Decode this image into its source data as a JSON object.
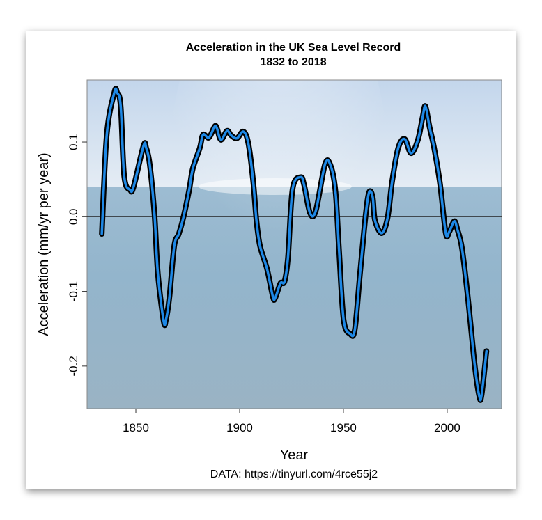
{
  "chart_data": {
    "type": "line",
    "title": "Acceleration in the UK Sea Level Record",
    "subtitle": "1832 to 2018",
    "xlabel": "Year",
    "ylabel": "Acceleration (mm/yr per year)",
    "caption": "DATA: https://tinyurl.com/4rce55j2",
    "xlim": [
      1826.5,
      2026.2
    ],
    "ylim": [
      -0.257,
      0.183
    ],
    "xticks": [
      1850,
      1900,
      1950,
      2000
    ],
    "xtick_labels": [
      "1850",
      "1900",
      "1950",
      "2000"
    ],
    "yticks": [
      -0.2,
      -0.1,
      0.0,
      0.1
    ],
    "ytick_labels": [
      "-0.2",
      "-0.1",
      "0.0",
      "0.1"
    ],
    "reference_line": 0.0,
    "grid": false,
    "background": "sea photograph",
    "colors": {
      "line": "#1e88e5",
      "line_outline": "#000000"
    },
    "series": [
      {
        "x": [
          1833.6,
          1836.0,
          1839.7,
          1841.0,
          1842.7,
          1844.4,
          1847.2,
          1848.9,
          1853.7,
          1855.0,
          1856.7,
          1859.0,
          1860.6,
          1863.4,
          1864.5,
          1866.2,
          1868.5,
          1870.7,
          1872.9,
          1875.7,
          1877.4,
          1880.8,
          1882.4,
          1885.2,
          1888.0,
          1889.1,
          1891.0,
          1893.9,
          1895.9,
          1898.7,
          1901.8,
          1904.2,
          1906.5,
          1908.1,
          1909.8,
          1913.2,
          1916.0,
          1917.1,
          1919.7,
          1921.6,
          1923.3,
          1925.5,
          1929.4,
          1931.1,
          1933.9,
          1936.7,
          1941.2,
          1944.0,
          1946.2,
          1947.9,
          1950.1,
          1953.3,
          1955.5,
          1958.0,
          1960.7,
          1962.4,
          1964.1,
          1965.2,
          1968.5,
          1971.3,
          1973.5,
          1976.4,
          1979.5,
          1982.6,
          1985.9,
          1988.2,
          1989.5,
          1991.5,
          1993.7,
          1996.5,
          1999.3,
          2001.0,
          2003.4,
          2004.9,
          2007.1,
          2009.9,
          2013.3,
          2015.5,
          2016.6,
          2018.9
        ],
        "y": [
          -0.023,
          0.11,
          0.167,
          0.166,
          0.148,
          0.054,
          0.036,
          0.04,
          0.095,
          0.092,
          0.07,
          0.002,
          -0.076,
          -0.14,
          -0.138,
          -0.107,
          -0.039,
          -0.023,
          -0.001,
          0.036,
          0.064,
          0.092,
          0.11,
          0.106,
          0.121,
          0.118,
          0.103,
          0.115,
          0.109,
          0.105,
          0.114,
          0.098,
          0.048,
          -0.005,
          -0.039,
          -0.07,
          -0.107,
          -0.109,
          -0.089,
          -0.087,
          -0.054,
          0.037,
          0.053,
          0.042,
          0.005,
          0.008,
          0.071,
          0.067,
          0.033,
          -0.045,
          -0.138,
          -0.157,
          -0.151,
          -0.076,
          0.002,
          0.033,
          0.026,
          -0.005,
          -0.022,
          -0.001,
          0.048,
          0.092,
          0.104,
          0.085,
          0.103,
          0.134,
          0.148,
          0.12,
          0.092,
          0.045,
          -0.022,
          -0.02,
          -0.006,
          -0.017,
          -0.042,
          -0.107,
          -0.2,
          -0.241,
          -0.238,
          -0.18
        ]
      }
    ]
  }
}
